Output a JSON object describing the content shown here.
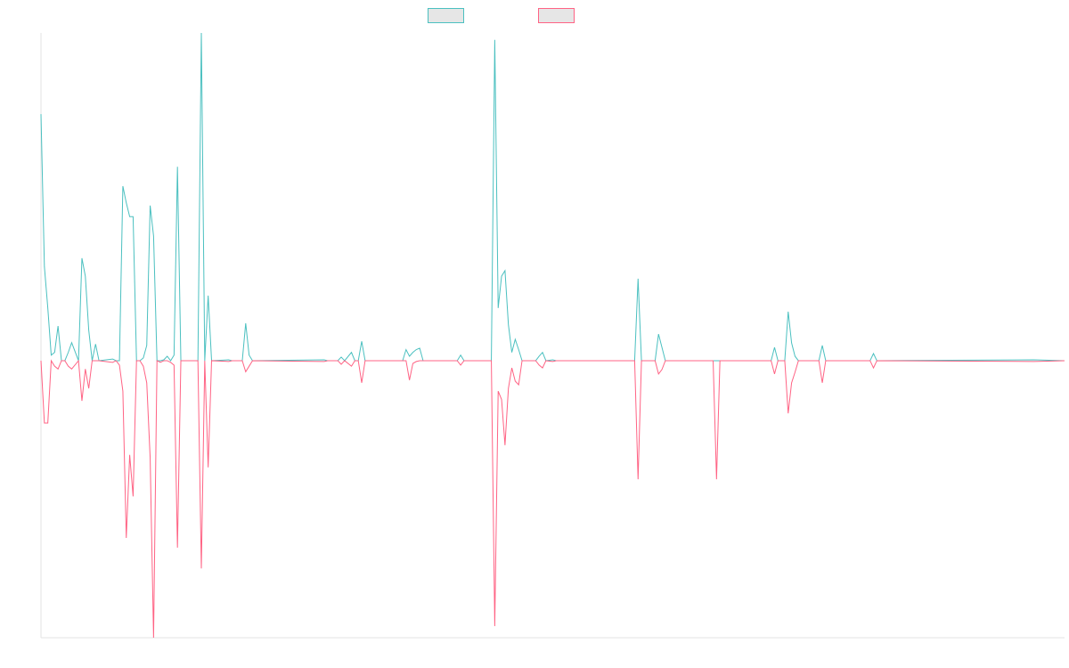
{
  "chart_data": {
    "type": "line",
    "x": [
      0,
      1,
      2,
      3,
      4,
      5,
      6,
      7,
      8,
      9,
      11,
      12,
      13,
      14,
      15,
      16,
      17,
      21,
      22,
      23,
      24,
      25,
      26,
      27,
      28,
      29,
      30,
      31,
      32,
      33,
      34,
      35,
      36,
      37,
      38,
      39,
      40,
      41,
      46,
      47,
      48,
      49,
      50,
      55,
      56,
      59,
      60,
      61,
      62,
      83,
      84,
      87,
      88,
      89,
      91,
      92,
      93,
      94,
      95,
      106,
      107,
      108,
      109,
      110,
      111,
      112,
      122,
      123,
      124,
      132,
      133,
      134,
      135,
      136,
      137,
      138,
      139,
      140,
      141,
      145,
      146,
      147,
      148,
      150,
      151,
      174,
      175,
      176,
      180,
      181,
      182,
      183,
      197,
      198,
      199,
      214,
      215,
      216,
      218,
      219,
      220,
      221,
      222,
      228,
      229,
      230,
      243,
      244,
      245,
      291,
      300
    ],
    "xlim": [
      0,
      300
    ],
    "ylim": [
      -1,
      1.183
    ],
    "series": [
      {
        "color": "#4bc0c0",
        "values": [
          0.89,
          0.34,
          0.19,
          0.02,
          0.03,
          0.125,
          0,
          0,
          0.03,
          0.065,
          0,
          0.37,
          0.305,
          0.11,
          0,
          0.06,
          0,
          0.006,
          0,
          0,
          0.63,
          0.57,
          0.52,
          0.52,
          0,
          0,
          0.01,
          0.055,
          0.56,
          0.45,
          0,
          0,
          0.003,
          0.016,
          0,
          0.02,
          0.7,
          0,
          0,
          1.183,
          0,
          0.235,
          0,
          0.003,
          0,
          0,
          0.135,
          0.02,
          0,
          0.003,
          0,
          0,
          0.013,
          0,
          0.03,
          0,
          0,
          0.07,
          0,
          0,
          0.04,
          0.016,
          0.03,
          0.04,
          0.045,
          0,
          0,
          0.02,
          0,
          0,
          1.158,
          0.19,
          0.305,
          0.325,
          0.13,
          0.03,
          0.077,
          0.04,
          0,
          0,
          0.016,
          0.03,
          0,
          0.003,
          0,
          0,
          0.296,
          0,
          0,
          0.096,
          0.048,
          0,
          0,
          0,
          0,
          0,
          0.048,
          0,
          0,
          0.177,
          0.064,
          0.016,
          0,
          0,
          0.055,
          0,
          0,
          0.026,
          0,
          0.003,
          0
        ]
      },
      {
        "color": "#ff6384",
        "values": [
          0,
          -0.225,
          -0.225,
          0,
          -0.02,
          -0.03,
          0,
          0,
          -0.02,
          -0.03,
          0,
          -0.145,
          -0.03,
          -0.1,
          0,
          0,
          0,
          -0.006,
          0,
          -0.016,
          -0.11,
          -0.64,
          -0.34,
          -0.49,
          0,
          0,
          -0.02,
          -0.08,
          -0.35,
          -1,
          0,
          -0.006,
          0,
          0,
          -0.006,
          -0.016,
          -0.675,
          0,
          0,
          -0.75,
          0,
          -0.385,
          0,
          -0.003,
          0,
          0,
          -0.04,
          -0.02,
          0,
          -0.003,
          0,
          0,
          -0.013,
          0,
          -0.02,
          0,
          0,
          -0.08,
          0,
          0,
          0,
          -0.07,
          -0.01,
          -0.003,
          0,
          0,
          0,
          -0.016,
          0,
          0,
          -0.958,
          -0.11,
          -0.14,
          -0.305,
          -0.1,
          -0.026,
          -0.074,
          -0.087,
          0,
          0,
          -0.016,
          -0.026,
          0,
          -0.003,
          0,
          0,
          -0.428,
          0,
          0,
          -0.048,
          -0.032,
          0,
          0,
          -0.428,
          0,
          0,
          -0.048,
          0,
          0,
          -0.19,
          -0.08,
          -0.042,
          0,
          0,
          -0.08,
          0,
          0,
          -0.026,
          0,
          -0.003,
          0
        ]
      }
    ]
  }
}
